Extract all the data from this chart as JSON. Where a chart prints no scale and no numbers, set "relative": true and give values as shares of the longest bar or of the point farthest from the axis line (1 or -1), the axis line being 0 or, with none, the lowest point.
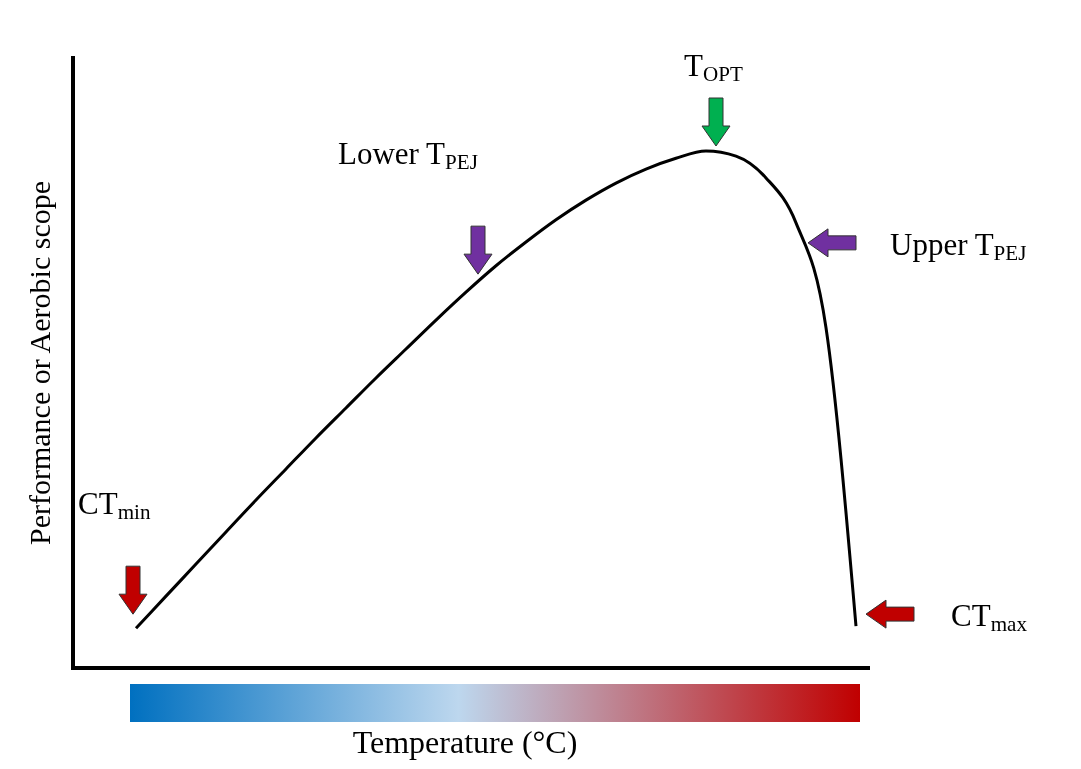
{
  "chart_data": {
    "type": "line",
    "relative": true,
    "xlabel": "Temperature (°C)",
    "ylabel": "Performance or Aerobic scope",
    "categories": [
      null,
      null,
      null,
      null,
      null,
      null,
      null,
      null,
      null,
      null,
      null,
      null,
      null,
      null,
      null,
      null,
      null,
      null,
      null,
      null,
      null,
      null,
      null,
      null,
      null
    ],
    "series": [
      {
        "color": "#000000",
        "values": [
          0.077,
          0.139,
          0.201,
          0.263,
          0.325,
          0.385,
          0.445,
          0.503,
          0.561,
          0.617,
          0.673,
          0.727,
          0.778,
          0.824,
          0.867,
          0.905,
          0.938,
          0.965,
          0.986,
          1.0,
          0.99,
          0.948,
          0.861,
          0.658,
          0.081
        ]
      }
    ],
    "annotations": [
      "CT$_{min}$",
      "Lower T$_{PEJ}$",
      "T$_{OPT}$",
      "Upper T$_{PEJ}$",
      "CT$_{max}$"
    ],
    "grid": false,
    "marker": "none",
    "line_style": "solid"
  }
}
